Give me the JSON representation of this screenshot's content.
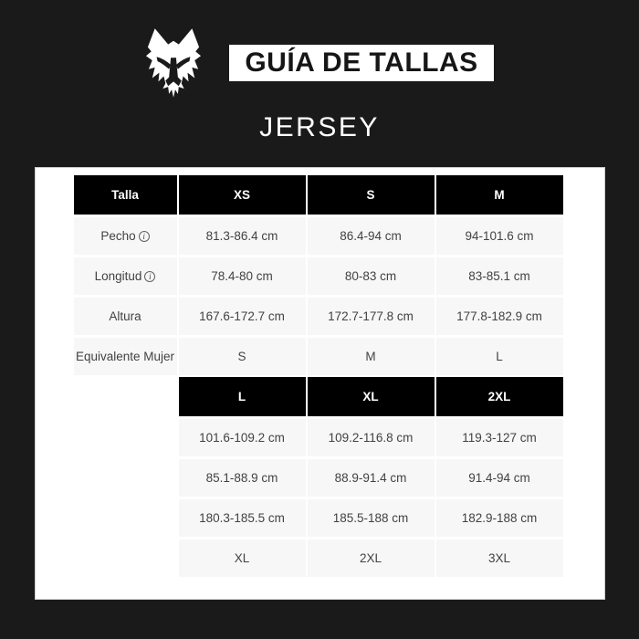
{
  "header": {
    "brand_logo": "fox-head-logo",
    "title": "GUÍA DE TALLAS",
    "product": "JERSEY"
  },
  "colors": {
    "background": "#1a1a1a",
    "panel": "#ffffff",
    "header_cell": "#000000",
    "data_cell": "#f7f7f7",
    "data_text": "#424242"
  },
  "size_chart": {
    "label_header": "Talla",
    "row_labels": [
      "Pecho",
      "Longitud",
      "Altura",
      "Equivalente Mujer"
    ],
    "row_has_info": [
      true,
      true,
      false,
      false
    ],
    "info_symbol": "i",
    "tables": [
      {
        "sizes": [
          "XS",
          "S",
          "M"
        ],
        "rows": [
          [
            "81.3-86.4 cm",
            "86.4-94 cm",
            "94-101.6 cm"
          ],
          [
            "78.4-80 cm",
            "80-83 cm",
            "83-85.1 cm"
          ],
          [
            "167.6-172.7 cm",
            "172.7-177.8 cm",
            "177.8-182.9 cm"
          ],
          [
            "S",
            "M",
            "L"
          ]
        ],
        "has_label_column": true
      },
      {
        "sizes": [
          "L",
          "XL",
          "2XL"
        ],
        "rows": [
          [
            "101.6-109.2 cm",
            "109.2-116.8 cm",
            "119.3-127 cm"
          ],
          [
            "85.1-88.9 cm",
            "88.9-91.4 cm",
            "91.4-94 cm"
          ],
          [
            "180.3-185.5 cm",
            "185.5-188 cm",
            "182.9-188 cm"
          ],
          [
            "XL",
            "2XL",
            "3XL"
          ]
        ],
        "has_label_column": false
      }
    ]
  }
}
